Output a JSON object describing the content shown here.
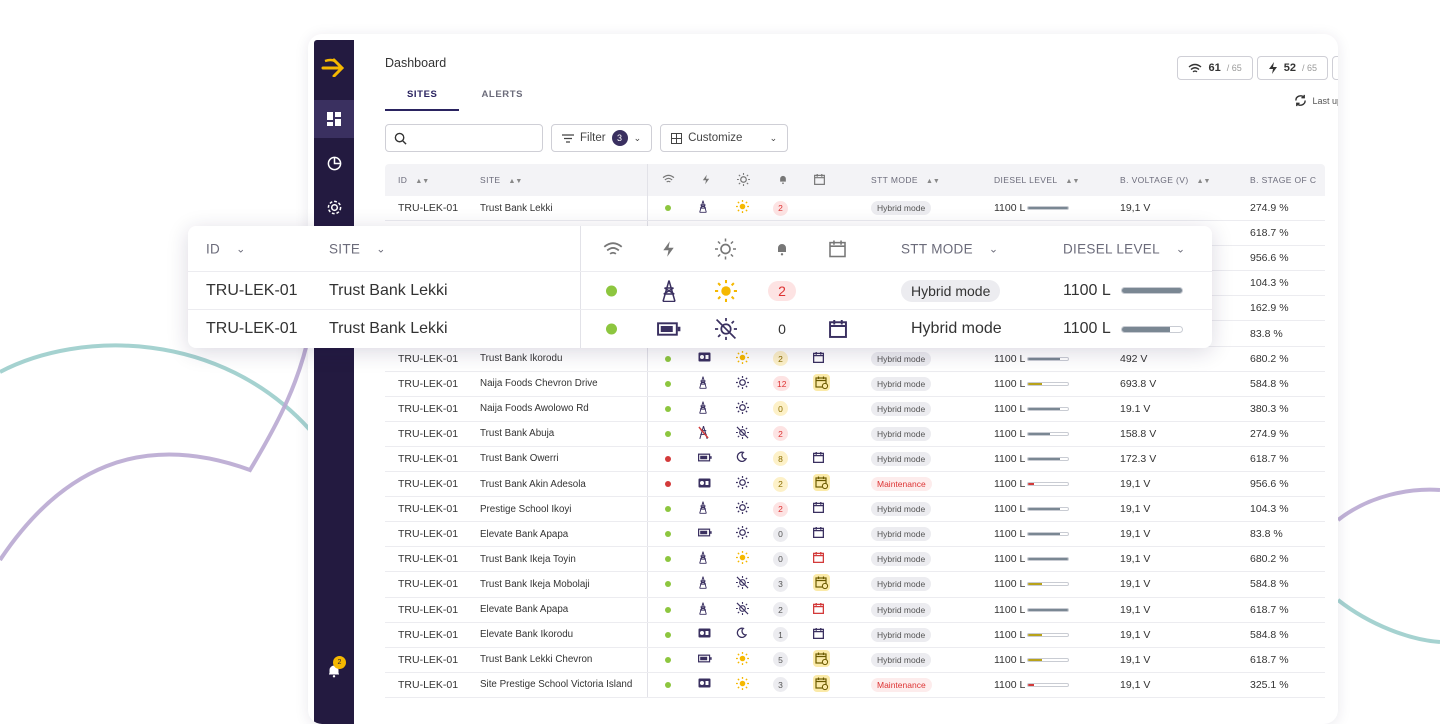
{
  "colors": {
    "sidebar": "#231a40",
    "accent": "#f5b800",
    "ok": "#8dc63f",
    "error": "#d33a3a",
    "primary": "#2a2360"
  },
  "breadcrumb": "Dashboard",
  "tabs": [
    {
      "label": "SITES",
      "active": true
    },
    {
      "label": "ALERTS",
      "active": false
    }
  ],
  "stats": [
    {
      "icon": "wifi-icon",
      "value": "61",
      "of": "/ 65"
    },
    {
      "icon": "bolt-icon",
      "value": "52",
      "of": "/ 65"
    }
  ],
  "last_updated": "Last up",
  "toolbar": {
    "search_placeholder": "",
    "filter_label": "Filter",
    "filter_count": "3",
    "customize_label": "Customize"
  },
  "table": {
    "headers": {
      "id": "ID",
      "site": "SITE",
      "stt_mode": "STT MODE",
      "diesel": "DIESEL LEVEL",
      "bvolt": "B. VOLTAGE (V)",
      "bstage": "B. STAGE OF C"
    },
    "rows": [
      {
        "id": "TRU-LEK-01",
        "site": "Trust Bank Lekki",
        "status": "ok",
        "power": "tower",
        "sun": "sun",
        "alerts": "2",
        "alert_style": "red",
        "cal": "",
        "mode": "Hybrid mode",
        "mode_style": "normal",
        "diesel": "1100 L",
        "fill": 1.0,
        "fill_color": "#7a8793",
        "bv": "19,1 V",
        "bs": "274.9 %"
      },
      {
        "id": "",
        "site": "",
        "status": "",
        "power": "",
        "sun": "",
        "alerts": "",
        "alert_style": "",
        "cal": "",
        "mode": "",
        "mode_style": "",
        "diesel": "",
        "fill": 0,
        "fill_color": "",
        "bv": "",
        "bs": "618.7 %"
      },
      {
        "id": "",
        "site": "",
        "status": "",
        "power": "",
        "sun": "",
        "alerts": "",
        "alert_style": "",
        "cal": "",
        "mode": "",
        "mode_style": "",
        "diesel": "",
        "fill": 0,
        "fill_color": "",
        "bv": "",
        "bs": "956.6 %"
      },
      {
        "id": "",
        "site": "",
        "status": "",
        "power": "",
        "sun": "",
        "alerts": "",
        "alert_style": "",
        "cal": "",
        "mode": "",
        "mode_style": "",
        "diesel": "",
        "fill": 0,
        "fill_color": "",
        "bv": "",
        "bs": "104.3 %"
      },
      {
        "id": "",
        "site": "",
        "status": "",
        "power": "",
        "sun": "",
        "alerts": "",
        "alert_style": "",
        "cal": "",
        "mode": "",
        "mode_style": "",
        "diesel": "",
        "fill": 0,
        "fill_color": "",
        "bv": "",
        "bs": "162.9 %"
      },
      {
        "id": "",
        "site": "",
        "status": "",
        "power": "",
        "sun": "",
        "alerts": "",
        "alert_style": "",
        "cal": "",
        "mode": "",
        "mode_style": "",
        "diesel": "",
        "fill": 0,
        "fill_color": "",
        "bv": "",
        "bs": "83.8 %"
      },
      {
        "id": "TRU-LEK-01",
        "site": "Trust Bank Ikorodu",
        "status": "ok",
        "power": "gen",
        "sun": "sun",
        "alerts": "2",
        "alert_style": "yellow",
        "cal": "cal",
        "mode": "Hybrid mode",
        "mode_style": "normal",
        "diesel": "1100 L",
        "fill": 0.8,
        "fill_color": "#7a8793",
        "bv": "492 V",
        "bs": "680.2 %"
      },
      {
        "id": "TRU-LEK-01",
        "site": "Naija Foods Chevron Drive",
        "status": "ok",
        "power": "tower",
        "sun": "sun-dark",
        "alerts": "12",
        "alert_style": "red",
        "cal": "cal-warn",
        "mode": "Hybrid mode",
        "mode_style": "normal",
        "diesel": "1100 L",
        "fill": 0.35,
        "fill_color": "#b8a21a",
        "bv": "693.8 V",
        "bs": "584.8 %"
      },
      {
        "id": "TRU-LEK-01",
        "site": "Naija Foods Awolowo Rd",
        "status": "ok",
        "power": "tower",
        "sun": "sun-dark",
        "alerts": "0",
        "alert_style": "yellow",
        "cal": "",
        "mode": "Hybrid mode",
        "mode_style": "normal",
        "diesel": "1100 L",
        "fill": 0.8,
        "fill_color": "#7a8793",
        "bv": "19.1 V",
        "bs": "380.3 %"
      },
      {
        "id": "TRU-LEK-01",
        "site": "Trust Bank Abuja",
        "status": "ok",
        "power": "tower-off",
        "sun": "sun-off",
        "alerts": "2",
        "alert_style": "red",
        "cal": "",
        "mode": "Hybrid mode",
        "mode_style": "normal",
        "diesel": "1100 L",
        "fill": 0.55,
        "fill_color": "#7a8793",
        "bv": "158.8 V",
        "bs": "274.9 %"
      },
      {
        "id": "TRU-LEK-01",
        "site": "Trust Bank Owerri",
        "status": "err",
        "power": "batt",
        "sun": "moon",
        "alerts": "8",
        "alert_style": "yellow",
        "cal": "cal",
        "mode": "Hybrid mode",
        "mode_style": "normal",
        "diesel": "1100 L",
        "fill": 0.8,
        "fill_color": "#7a8793",
        "bv": "172.3 V",
        "bs": "618.7 %"
      },
      {
        "id": "TRU-LEK-01",
        "site": "Trust Bank Akin Adesola",
        "status": "err",
        "power": "gen",
        "sun": "sun-dark",
        "alerts": "2",
        "alert_style": "yellow",
        "cal": "cal-warn",
        "mode": "Maintenance",
        "mode_style": "maint",
        "diesel": "1100 L",
        "fill": 0.15,
        "fill_color": "#d33a3a",
        "bv": "19,1 V",
        "bs": "956.6 %"
      },
      {
        "id": "TRU-LEK-01",
        "site": "Prestige School Ikoyi",
        "status": "ok",
        "power": "tower",
        "sun": "sun-dark",
        "alerts": "2",
        "alert_style": "red",
        "cal": "cal",
        "mode": "Hybrid mode",
        "mode_style": "normal",
        "diesel": "1100 L",
        "fill": 0.8,
        "fill_color": "#7a8793",
        "bv": "19,1 V",
        "bs": "104.3 %"
      },
      {
        "id": "TRU-LEK-01",
        "site": "Elevate Bank Apapa",
        "status": "ok",
        "power": "batt",
        "sun": "sun-dark",
        "alerts": "0",
        "alert_style": "grey",
        "cal": "cal",
        "mode": "Hybrid mode",
        "mode_style": "normal",
        "diesel": "1100 L",
        "fill": 0.8,
        "fill_color": "#7a8793",
        "bv": "19,1 V",
        "bs": "83.8 %"
      },
      {
        "id": "TRU-LEK-01",
        "site": "Trust Bank Ikeja Toyin",
        "status": "ok",
        "power": "tower",
        "sun": "sun",
        "alerts": "0",
        "alert_style": "grey",
        "cal": "cal-red",
        "mode": "Hybrid mode",
        "mode_style": "normal",
        "diesel": "1100 L",
        "fill": 1.0,
        "fill_color": "#7a8793",
        "bv": "19,1 V",
        "bs": "680.2 %"
      },
      {
        "id": "TRU-LEK-01",
        "site": "Trust Bank Ikeja Mobolaji",
        "status": "ok",
        "power": "tower",
        "sun": "sun-off",
        "alerts": "3",
        "alert_style": "grey",
        "cal": "cal-warn",
        "mode": "Hybrid mode",
        "mode_style": "normal",
        "diesel": "1100 L",
        "fill": 0.35,
        "fill_color": "#b8a21a",
        "bv": "19,1 V",
        "bs": "584.8 %"
      },
      {
        "id": "TRU-LEK-01",
        "site": "Elevate Bank Apapa",
        "status": "ok",
        "power": "tower",
        "sun": "sun-off",
        "alerts": "2",
        "alert_style": "grey",
        "cal": "cal-red",
        "mode": "Hybrid mode",
        "mode_style": "normal",
        "diesel": "1100 L",
        "fill": 1.0,
        "fill_color": "#7a8793",
        "bv": "19,1 V",
        "bs": "618.7 %"
      },
      {
        "id": "TRU-LEK-01",
        "site": "Elevate Bank Ikorodu",
        "status": "ok",
        "power": "gen",
        "sun": "moon",
        "alerts": "1",
        "alert_style": "grey",
        "cal": "cal",
        "mode": "Hybrid mode",
        "mode_style": "normal",
        "diesel": "1100 L",
        "fill": 0.35,
        "fill_color": "#b8a21a",
        "bv": "19,1 V",
        "bs": "584.8 %"
      },
      {
        "id": "TRU-LEK-01",
        "site": "Trust Bank Lekki Chevron",
        "status": "ok",
        "power": "batt",
        "sun": "sun",
        "alerts": "5",
        "alert_style": "grey",
        "cal": "cal-warn",
        "mode": "Hybrid mode",
        "mode_style": "normal",
        "diesel": "1100 L",
        "fill": 0.35,
        "fill_color": "#b8a21a",
        "bv": "19,1 V",
        "bs": "618.7 %"
      },
      {
        "id": "TRU-LEK-01",
        "site": "Site Prestige School Victoria Island",
        "status": "ok",
        "power": "gen",
        "sun": "sun",
        "alerts": "3",
        "alert_style": "grey",
        "cal": "cal-warn",
        "mode": "Maintenance",
        "mode_style": "maint",
        "diesel": "1100 L",
        "fill": 0.15,
        "fill_color": "#d33a3a",
        "bv": "19,1 V",
        "bs": "325.1 %"
      }
    ]
  },
  "overlay": {
    "headers": {
      "id": "ID",
      "site": "SITE",
      "stt_mode": "STT MODE",
      "diesel": "DIESEL LEVEL"
    },
    "rows": [
      {
        "id": "TRU-LEK-01",
        "site": "Trust Bank Lekki",
        "alerts": "2",
        "mode": "Hybrid mode",
        "diesel": "1100 L",
        "fill": 1.0
      },
      {
        "id": "TRU-LEK-01",
        "site": "Trust Bank Lekki",
        "alerts": "0",
        "mode": "Hybrid mode",
        "diesel": "1100 L",
        "fill": 0.8
      }
    ]
  },
  "notifications_count": "2"
}
